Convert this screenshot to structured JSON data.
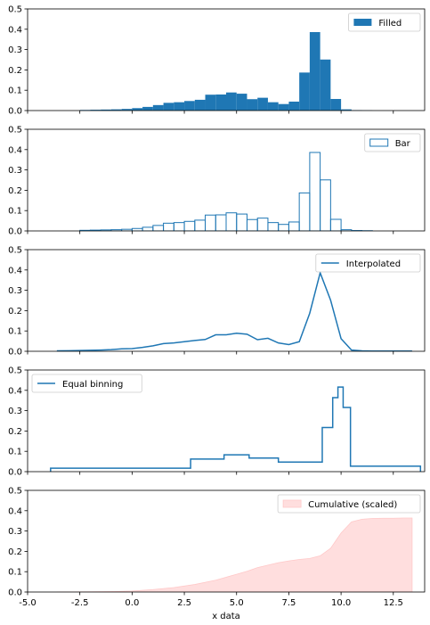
{
  "chart_data": [
    {
      "type": "bar",
      "style": "filled",
      "legend": "Filled",
      "legend_position": "top-right",
      "color": "#1f77b4",
      "xlim": [
        -5,
        14
      ],
      "ylim": [
        0,
        0.5
      ],
      "yticks": [
        "0.0",
        "0.1",
        "0.2",
        "0.3",
        "0.4",
        "0.5"
      ],
      "bin_edges": [
        -2.5,
        -2.0,
        -1.5,
        -1.0,
        -0.5,
        0.0,
        0.5,
        1.0,
        1.5,
        2.0,
        2.5,
        3.0,
        3.5,
        4.0,
        4.5,
        5.0,
        5.5,
        6.0,
        6.5,
        7.0,
        7.5,
        8.0,
        8.5,
        9.0,
        9.5,
        10.0,
        10.5,
        11.0,
        11.5,
        12.0
      ],
      "values": [
        0.003,
        0.004,
        0.005,
        0.006,
        0.008,
        0.012,
        0.018,
        0.027,
        0.038,
        0.041,
        0.047,
        0.053,
        0.078,
        0.079,
        0.089,
        0.083,
        0.056,
        0.063,
        0.041,
        0.032,
        0.044,
        0.187,
        0.386,
        0.251,
        0.057,
        0.006,
        0.002,
        0.001,
        0.0
      ]
    },
    {
      "type": "bar",
      "style": "outline",
      "legend": "Bar",
      "legend_position": "top-right",
      "color": "#1f77b4",
      "xlim": [
        -5,
        14
      ],
      "ylim": [
        0,
        0.5
      ],
      "yticks": [
        "0.0",
        "0.1",
        "0.2",
        "0.3",
        "0.4",
        "0.5"
      ],
      "bin_edges": [
        -2.5,
        -2.0,
        -1.5,
        -1.0,
        -0.5,
        0.0,
        0.5,
        1.0,
        1.5,
        2.0,
        2.5,
        3.0,
        3.5,
        4.0,
        4.5,
        5.0,
        5.5,
        6.0,
        6.5,
        7.0,
        7.5,
        8.0,
        8.5,
        9.0,
        9.5,
        10.0,
        10.5,
        11.0,
        11.5,
        12.0
      ],
      "values": [
        0.003,
        0.004,
        0.005,
        0.006,
        0.008,
        0.012,
        0.018,
        0.027,
        0.038,
        0.041,
        0.047,
        0.053,
        0.078,
        0.079,
        0.089,
        0.083,
        0.056,
        0.063,
        0.041,
        0.032,
        0.044,
        0.187,
        0.386,
        0.251,
        0.057,
        0.006,
        0.002,
        0.001,
        0.0
      ]
    },
    {
      "type": "line",
      "legend": "Interpolated",
      "legend_position": "top-right",
      "color": "#1f77b4",
      "xlim": [
        -5,
        14
      ],
      "ylim": [
        0,
        0.5
      ],
      "yticks": [
        "0.0",
        "0.1",
        "0.2",
        "0.3",
        "0.4",
        "0.5"
      ],
      "x": [
        -3.6,
        -3.0,
        -2.5,
        -2.0,
        -1.5,
        -1.0,
        -0.5,
        0.0,
        0.5,
        1.0,
        1.5,
        2.0,
        2.5,
        3.0,
        3.5,
        4.0,
        4.5,
        5.0,
        5.5,
        6.0,
        6.5,
        7.0,
        7.5,
        8.0,
        8.5,
        9.0,
        9.5,
        10.0,
        10.5,
        11.0,
        11.5,
        12.0,
        12.5,
        13.0,
        13.4
      ],
      "y": [
        0.002,
        0.003,
        0.004,
        0.005,
        0.006,
        0.008,
        0.012,
        0.013,
        0.019,
        0.027,
        0.038,
        0.041,
        0.047,
        0.053,
        0.058,
        0.081,
        0.081,
        0.089,
        0.084,
        0.057,
        0.064,
        0.041,
        0.033,
        0.047,
        0.187,
        0.386,
        0.251,
        0.062,
        0.006,
        0.002,
        0.001,
        0.001,
        0.001,
        0.001,
        0.001
      ]
    },
    {
      "type": "line",
      "style": "step",
      "legend": "Equal binning",
      "legend_position": "top-left",
      "color": "#1f77b4",
      "xlim": [
        -5,
        14
      ],
      "ylim": [
        0,
        0.5
      ],
      "yticks": [
        "0.0",
        "0.1",
        "0.2",
        "0.3",
        "0.4",
        "0.5"
      ],
      "bin_edges": [
        -3.9,
        2.8,
        4.4,
        5.6,
        7.0,
        9.1,
        9.6,
        9.85,
        10.1,
        10.45,
        13.8
      ],
      "values": [
        0.017,
        0.062,
        0.083,
        0.067,
        0.047,
        0.217,
        0.364,
        0.416,
        0.316,
        0.027
      ]
    },
    {
      "type": "area",
      "legend": "Cumulative (scaled)",
      "legend_position": "top-right",
      "color": "#ffdede",
      "edge_color": "#ffc8c8",
      "xlim": [
        -5,
        14
      ],
      "ylim": [
        0,
        0.5
      ],
      "yticks": [
        "0.0",
        "0.1",
        "0.2",
        "0.3",
        "0.4",
        "0.5"
      ],
      "xticks": [
        "-5.0",
        "-2.5",
        "0.0",
        "2.5",
        "5.0",
        "7.5",
        "10.0",
        "12.5"
      ],
      "xlabel": "x data",
      "x": [
        -3.6,
        -2.0,
        -1.0,
        0.0,
        1.0,
        2.0,
        3.0,
        4.0,
        5.0,
        5.5,
        6.0,
        6.5,
        7.0,
        7.5,
        8.0,
        8.5,
        9.0,
        9.5,
        10.0,
        10.5,
        11.0,
        11.5,
        12.0,
        12.5,
        13.0,
        13.4
      ],
      "y": [
        0.0,
        0.001,
        0.002,
        0.005,
        0.012,
        0.022,
        0.037,
        0.058,
        0.087,
        0.102,
        0.12,
        0.132,
        0.144,
        0.153,
        0.16,
        0.165,
        0.178,
        0.215,
        0.29,
        0.345,
        0.358,
        0.362,
        0.363,
        0.363,
        0.364,
        0.364
      ]
    }
  ]
}
